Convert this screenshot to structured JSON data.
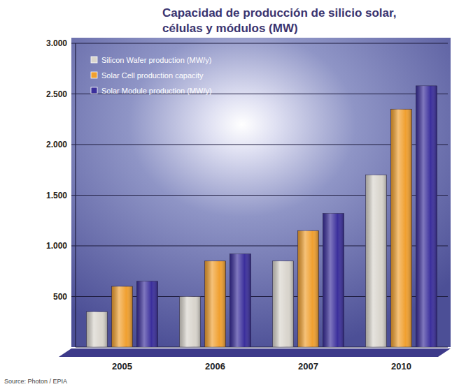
{
  "chart_data": {
    "type": "bar",
    "title": "Capacidad de producción de silicio solar, células y módulos (MW)",
    "source": "Source: Photon / EPIA",
    "categories": [
      "2005",
      "2006",
      "2007",
      "2010"
    ],
    "series": [
      {
        "name": "Silicon Wafer production (MW/y)",
        "color": "#d9d5cd",
        "values": [
          350,
          500,
          850,
          1700
        ]
      },
      {
        "name": "Solar Cell production capacity",
        "color": "#f0a030",
        "values": [
          600,
          850,
          1150,
          2350
        ]
      },
      {
        "name": "Solar Module production (MW/y)",
        "color": "#3b2f9c",
        "values": [
          650,
          920,
          1320,
          2580
        ]
      }
    ],
    "ylim": [
      0,
      3000
    ],
    "yticks": [
      500,
      {
        "value": 1000,
        "label": "1.000"
      },
      {
        "value": 1500,
        "label": "1.500"
      },
      {
        "value": 2000,
        "label": "2.000"
      },
      {
        "value": 2500,
        "label": "2.500"
      },
      {
        "value": 3000,
        "label": "3.000"
      }
    ],
    "grid": true,
    "legend": "upper left"
  }
}
